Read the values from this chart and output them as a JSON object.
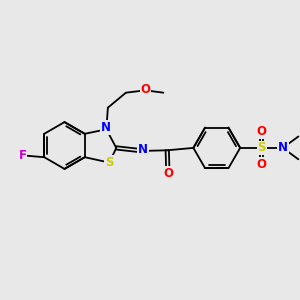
{
  "background_color": "#e8e8e8",
  "bond_color": "#000000",
  "atom_colors": {
    "F": "#cc00cc",
    "O": "#ff0000",
    "N": "#0000ff",
    "S": "#cccc00",
    "C": "#000000"
  },
  "font_size_atoms": 8.5,
  "fig_size": [
    3.0,
    3.0
  ],
  "dpi": 100
}
